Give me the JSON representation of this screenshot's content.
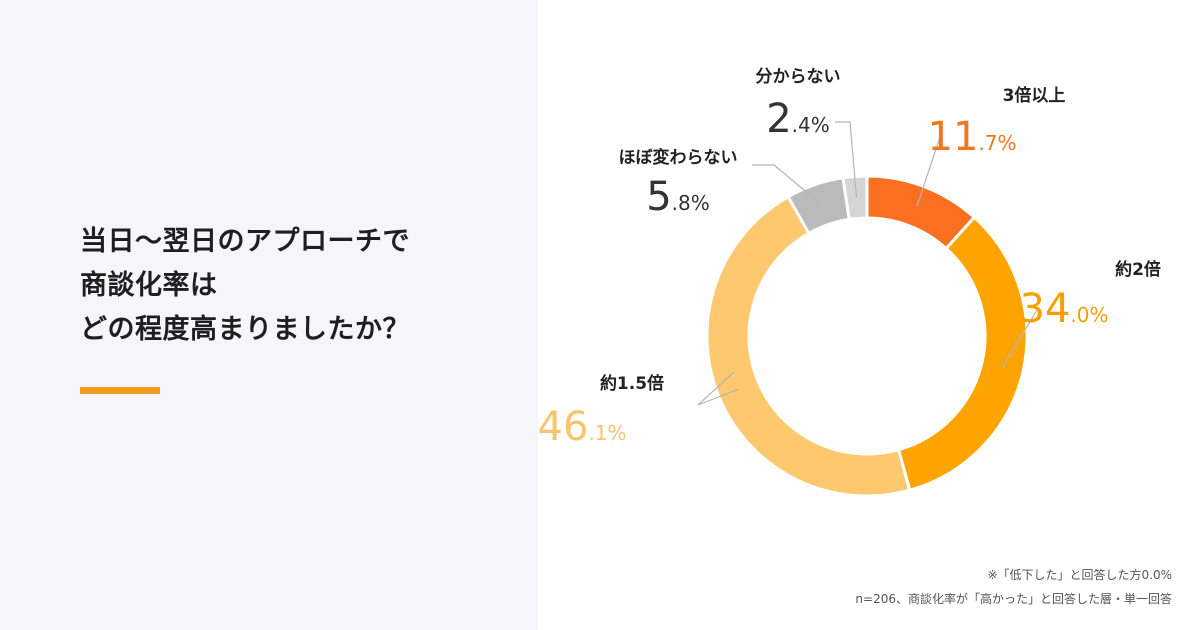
{
  "question": {
    "lines": [
      "当日〜翌日のアプローチで",
      "商談化率は",
      "どの程度高まりましたか？"
    ]
  },
  "colors": {
    "accent": "#f19e1c",
    "left_background": "#f6f6fa",
    "leader_line": "#b5b5b5"
  },
  "chart_data": {
    "type": "pie",
    "style": "donut",
    "title": "",
    "unit": "%",
    "categories": [
      "3倍以上",
      "約2倍",
      "約1.5倍",
      "ほぼ変わらない",
      "分からない"
    ],
    "values": [
      11.7,
      34.0,
      46.1,
      5.8,
      2.4
    ],
    "segments": [
      {
        "label": "3倍以上",
        "value": 11.7,
        "int": "11",
        "dec": ".7%",
        "color": "#fa7020",
        "text_color": "#f0761f"
      },
      {
        "label": "約2倍",
        "value": 34.0,
        "int": "34",
        "dec": ".0%",
        "color": "#fea400",
        "text_color": "#f5a000"
      },
      {
        "label": "約1.5倍",
        "value": 46.1,
        "int": "46",
        "dec": ".1%",
        "color": "#fec86e",
        "text_color": "#f8c46c"
      },
      {
        "label": "ほぼ変わらない",
        "value": 5.8,
        "int": "5",
        "dec": ".8%",
        "color": "#bababa",
        "text_color": "#333333"
      },
      {
        "label": "分からない",
        "value": 2.4,
        "int": "2",
        "dec": ".4%",
        "color": "#d5d5d5",
        "text_color": "#333333"
      }
    ],
    "start_angle": "12 o'clock",
    "direction": "clockwise"
  },
  "notes": {
    "line1": "※「低下した」と回答した方0.0%",
    "line2": "n=206、商談化率が「高かった」と回答した層・単一回答"
  }
}
